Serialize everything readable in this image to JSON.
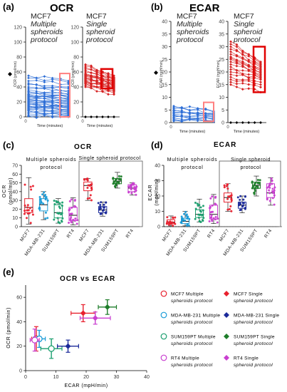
{
  "colors": {
    "mcf7_multi": "#2f6fd6",
    "mcf7_single": "#d62222",
    "highlight": "#ff8080",
    "highlight_strong": "#e00000",
    "multi_fill": "#f4a3a3",
    "c_mcf7": "#e8212e",
    "c_mda": "#1a9bd7",
    "c_sum": "#1a9e6e",
    "c_rt4": "#c93fd0",
    "c_mda_single": "#1b2a9a",
    "c_sum_single": "#1e7d2a"
  },
  "panel_a": {
    "letter": "(a)",
    "title": "OCR",
    "ylabel": "OCR (pmol/min)",
    "xlabel": "Time (minutes)",
    "label_multi": [
      "MCF7",
      "Multiple",
      "spheroids",
      "protocol"
    ],
    "label_single": [
      "MCF7",
      "Single",
      "spheroid",
      "protocol"
    ],
    "yticks": [
      "0",
      "20",
      "40",
      "60",
      "80",
      "100",
      "120"
    ],
    "xtick": "0"
  },
  "panel_b": {
    "letter": "(b)",
    "title": "ECAR",
    "ylabel": "ECAR (mpH/min)",
    "xlabel": "Time (minutes)",
    "label_multi": [
      "MCF7",
      "Multiple",
      "spheroids",
      "protocol"
    ],
    "label_single": [
      "MCF7",
      "Single",
      "spheroid",
      "protocol"
    ],
    "yticks": [
      "0",
      "5",
      "10",
      "15",
      "20",
      "25",
      "30",
      "35",
      "40"
    ],
    "xtick": "0"
  },
  "panel_c": {
    "letter": "(c)",
    "title": "OCR",
    "ylabel": [
      "OCR",
      "(pmol/min)"
    ],
    "multi_label": [
      "Multiple spheroids",
      "protocol"
    ],
    "single_label": "Single spheroid protocol",
    "yticks": [
      "0",
      "10",
      "20",
      "30",
      "40",
      "50",
      "60",
      "70"
    ],
    "categories": [
      "MCF7",
      "MDA-MB-231",
      "SUM159PT",
      "RT4",
      "MCF7",
      "MDA-MB-231",
      "SUM159PT",
      "RT4"
    ]
  },
  "panel_d": {
    "letter": "(d)",
    "title": "ECAR",
    "ylabel": [
      "ECAR",
      "(mpH/min)"
    ],
    "multi_label": [
      "Multiple spheroids",
      "protocol"
    ],
    "single_label": [
      "Single spheroid",
      "protocol"
    ],
    "yticks": [
      "0",
      "10",
      "20",
      "30",
      "40"
    ],
    "categories": [
      "MCF7",
      "MDA-MB-231",
      "SUM159PT",
      "RT4",
      "MCF7",
      "MDA-MB-231",
      "SUM159PT",
      "RT4"
    ]
  },
  "panel_e": {
    "letter": "(e)",
    "title": "OCR vs ECAR",
    "xlabel": "ECAR (mpH/min)",
    "ylabel": "OCR (pmol/min)",
    "xticks": [
      "0",
      "10",
      "20",
      "30",
      "40"
    ],
    "yticks": [
      "0",
      "20",
      "40",
      "60"
    ],
    "legend": [
      {
        "l1": "MCF7 Multiple",
        "l2": "spheroids protocol",
        "color": "#e8212e",
        "filled": false
      },
      {
        "l1": "MCF7 Single",
        "l2": "spheroid protocol",
        "color": "#e8212e",
        "filled": true
      },
      {
        "l1": "MDA-MB-231 Multiple",
        "l2": "spheroids protocol",
        "color": "#1a9bd7",
        "filled": false
      },
      {
        "l1": "MDA-MB-231 Single",
        "l2": "spheroid protocol",
        "color": "#1b2a9a",
        "filled": true
      },
      {
        "l1": "SUM159PT Multiple",
        "l2": "spheroids protocol",
        "color": "#1a9e6e",
        "filled": false
      },
      {
        "l1": "SUM159PT Single",
        "l2": "spheroid protocol",
        "color": "#1e7d2a",
        "filled": true
      },
      {
        "l1": "RT4 Multiple",
        "l2": "spheroids protocol",
        "color": "#c93fd0",
        "filled": false
      },
      {
        "l1": "RT4 Single",
        "l2": "spheroid protocol",
        "color": "#c93fd0",
        "filled": true
      }
    ]
  },
  "chart_data": [
    {
      "type": "line",
      "panel": "a-multi",
      "title": "OCR",
      "ylabel": "OCR (pmol/min)",
      "xlabel": "Time (minutes)",
      "ylim": [
        0,
        120
      ],
      "timepoints": 6,
      "start_values": [
        55,
        52,
        48,
        45,
        43,
        40,
        38,
        36,
        34,
        33,
        31,
        30,
        29,
        28,
        27,
        26,
        25,
        24,
        23,
        22,
        21,
        20,
        19,
        18,
        17,
        16,
        15,
        14,
        13,
        12,
        11,
        10,
        9,
        8,
        6,
        4,
        2,
        1
      ],
      "end_values": [
        48,
        46,
        44,
        40,
        38,
        35,
        33,
        31,
        30,
        29,
        27,
        26,
        25,
        24,
        23,
        22,
        21,
        20,
        19,
        18,
        17,
        16,
        15,
        14,
        13,
        12,
        11,
        10,
        9,
        8,
        7,
        6,
        5,
        4,
        3,
        2,
        1,
        0
      ]
    },
    {
      "type": "line",
      "panel": "a-single",
      "title": "OCR",
      "ylabel": "OCR (pmol/min)",
      "xlabel": "Time (minutes)",
      "ylim": [
        0,
        120
      ],
      "timepoints": 6,
      "start_values": [
        70,
        68,
        66,
        64,
        62,
        60,
        58,
        57,
        56,
        55,
        54,
        53,
        52,
        51,
        50,
        49,
        48,
        47,
        46,
        45,
        44,
        42,
        40
      ],
      "end_values": [
        55,
        53,
        52,
        51,
        50,
        49,
        48,
        47,
        46,
        45,
        44,
        43,
        42,
        41,
        40,
        39,
        38,
        37,
        36,
        35,
        34,
        32,
        30
      ],
      "baseline_value": 0
    },
    {
      "type": "line",
      "panel": "b-multi",
      "title": "ECAR",
      "ylabel": "ECAR (mpH/min)",
      "xlabel": "Time (minutes)",
      "ylim": [
        0,
        40
      ],
      "timepoints": 6,
      "start_values": [
        6.5,
        6,
        5.5,
        5,
        4.6,
        4.2,
        3.8,
        3.4,
        3,
        2.6,
        2.2,
        1.8,
        1.4,
        1,
        0.6
      ],
      "end_values": [
        4.5,
        4.2,
        3.8,
        3.5,
        3.2,
        3,
        2.7,
        2.4,
        2.1,
        1.8,
        1.5,
        1.2,
        0.9,
        0.6,
        0.3
      ]
    },
    {
      "type": "line",
      "panel": "b-single",
      "title": "ECAR",
      "ylabel": "ECAR (mpH/min)",
      "xlabel": "Time (minutes)",
      "ylim": [
        0,
        40
      ],
      "timepoints": 6,
      "start_values": [
        32,
        31,
        30,
        29,
        28,
        27,
        26,
        25.5,
        25,
        24,
        23,
        22,
        21,
        20,
        19,
        18,
        17,
        16,
        15
      ],
      "end_values": [
        24,
        23.5,
        23,
        22.5,
        22,
        21.5,
        21,
        20.5,
        20,
        19.5,
        19,
        18.5,
        18,
        17.5,
        17,
        16,
        15,
        14,
        12
      ],
      "baseline_value": 0
    },
    {
      "type": "box",
      "panel": "c",
      "title": "OCR",
      "ylabel": "OCR (pmol/min)",
      "ylim": [
        0,
        70
      ],
      "categories": [
        "MCF7",
        "MDA-MB-231",
        "SUM159PT",
        "RT4",
        "MCF7",
        "MDA-MB-231",
        "SUM159PT",
        "RT4"
      ],
      "groups": [
        "Multiple spheroids protocol",
        "Multiple spheroids protocol",
        "Multiple spheroids protocol",
        "Multiple spheroids protocol",
        "Single spheroid protocol",
        "Single spheroid protocol",
        "Single spheroid protocol",
        "Single spheroid protocol"
      ],
      "boxes": [
        {
          "min": 3,
          "q1": 16,
          "median": 22,
          "q3": 32,
          "max": 56
        },
        {
          "min": 8,
          "q1": 18,
          "median": 25,
          "q3": 32,
          "max": 40
        },
        {
          "min": 4,
          "q1": 10,
          "median": 16,
          "q3": 25,
          "max": 32
        },
        {
          "min": 2,
          "q1": 7,
          "median": 13,
          "q3": 22,
          "max": 33
        },
        {
          "min": 30,
          "q1": 41,
          "median": 47,
          "q3": 51,
          "max": 55
        },
        {
          "min": 12,
          "q1": 16,
          "median": 19,
          "q3": 23,
          "max": 28
        },
        {
          "min": 44,
          "q1": 49,
          "median": 52,
          "q3": 55,
          "max": 62
        },
        {
          "min": 36,
          "q1": 40,
          "median": 44,
          "q3": 48,
          "max": 50
        }
      ]
    },
    {
      "type": "box",
      "panel": "d",
      "title": "ECAR",
      "ylabel": "ECAR (mpH/min)",
      "ylim": [
        0,
        40
      ],
      "categories": [
        "MCF7",
        "MDA-MB-231",
        "SUM159PT",
        "RT4",
        "MCF7",
        "MDA-MB-231",
        "SUM159PT",
        "RT4"
      ],
      "groups": [
        "Multiple spheroids protocol",
        "Multiple spheroids protocol",
        "Multiple spheroids protocol",
        "Multiple spheroids protocol",
        "Single spheroid protocol",
        "Single spheroid protocol",
        "Single spheroid protocol",
        "Single spheroid protocol"
      ],
      "boxes": [
        {
          "min": 0.5,
          "q1": 2,
          "median": 3,
          "q3": 4.5,
          "max": 7
        },
        {
          "min": 0.5,
          "q1": 2,
          "median": 3.5,
          "q3": 5.5,
          "max": 10
        },
        {
          "min": 3,
          "q1": 6,
          "median": 8,
          "q3": 11,
          "max": 18
        },
        {
          "min": 2,
          "q1": 5,
          "median": 8,
          "q3": 14,
          "max": 21
        },
        {
          "min": 10,
          "q1": 16,
          "median": 19,
          "q3": 22,
          "max": 28
        },
        {
          "min": 9,
          "q1": 12,
          "median": 14,
          "q3": 16,
          "max": 20
        },
        {
          "min": 20,
          "q1": 25,
          "median": 27,
          "q3": 29,
          "max": 33
        },
        {
          "min": 14,
          "q1": 19,
          "median": 22,
          "q3": 28,
          "max": 32
        }
      ]
    },
    {
      "type": "scatter",
      "panel": "e",
      "title": "OCR vs ECAR",
      "xlabel": "ECAR (mpH/min)",
      "ylabel": "OCR (pmol/min)",
      "xlim": [
        0,
        40
      ],
      "ylim": [
        0,
        70
      ],
      "series": [
        {
          "name": "MCF7 Multiple spheroids protocol",
          "x": 3.5,
          "y": 26,
          "xerr": 1.5,
          "yerr": 10,
          "color": "#e8212e",
          "filled": false
        },
        {
          "name": "MDA-MB-231 Multiple spheroids protocol",
          "x": 4.5,
          "y": 26,
          "xerr": 2,
          "yerr": 7,
          "color": "#1a9bd7",
          "filled": false
        },
        {
          "name": "SUM159PT Multiple spheroids protocol",
          "x": 8.5,
          "y": 18,
          "xerr": 3.5,
          "yerr": 8,
          "color": "#1a9e6e",
          "filled": false
        },
        {
          "name": "RT4 Multiple spheroids protocol",
          "x": 3,
          "y": 25,
          "xerr": 1.5,
          "yerr": 9,
          "color": "#c93fd0",
          "filled": false
        },
        {
          "name": "MCF7 Single spheroid protocol",
          "x": 19,
          "y": 47,
          "xerr": 4,
          "yerr": 7,
          "color": "#e8212e",
          "filled": true
        },
        {
          "name": "MDA-MB-231 Single spheroid protocol",
          "x": 14,
          "y": 20,
          "xerr": 3.5,
          "yerr": 5,
          "color": "#1b2a9a",
          "filled": true
        },
        {
          "name": "SUM159PT Single spheroid protocol",
          "x": 27,
          "y": 52,
          "xerr": 3,
          "yerr": 6,
          "color": "#1e7d2a",
          "filled": true
        },
        {
          "name": "RT4 Single spheroid protocol",
          "x": 23,
          "y": 43,
          "xerr": 5,
          "yerr": 5,
          "color": "#c93fd0",
          "filled": true
        }
      ]
    }
  ]
}
